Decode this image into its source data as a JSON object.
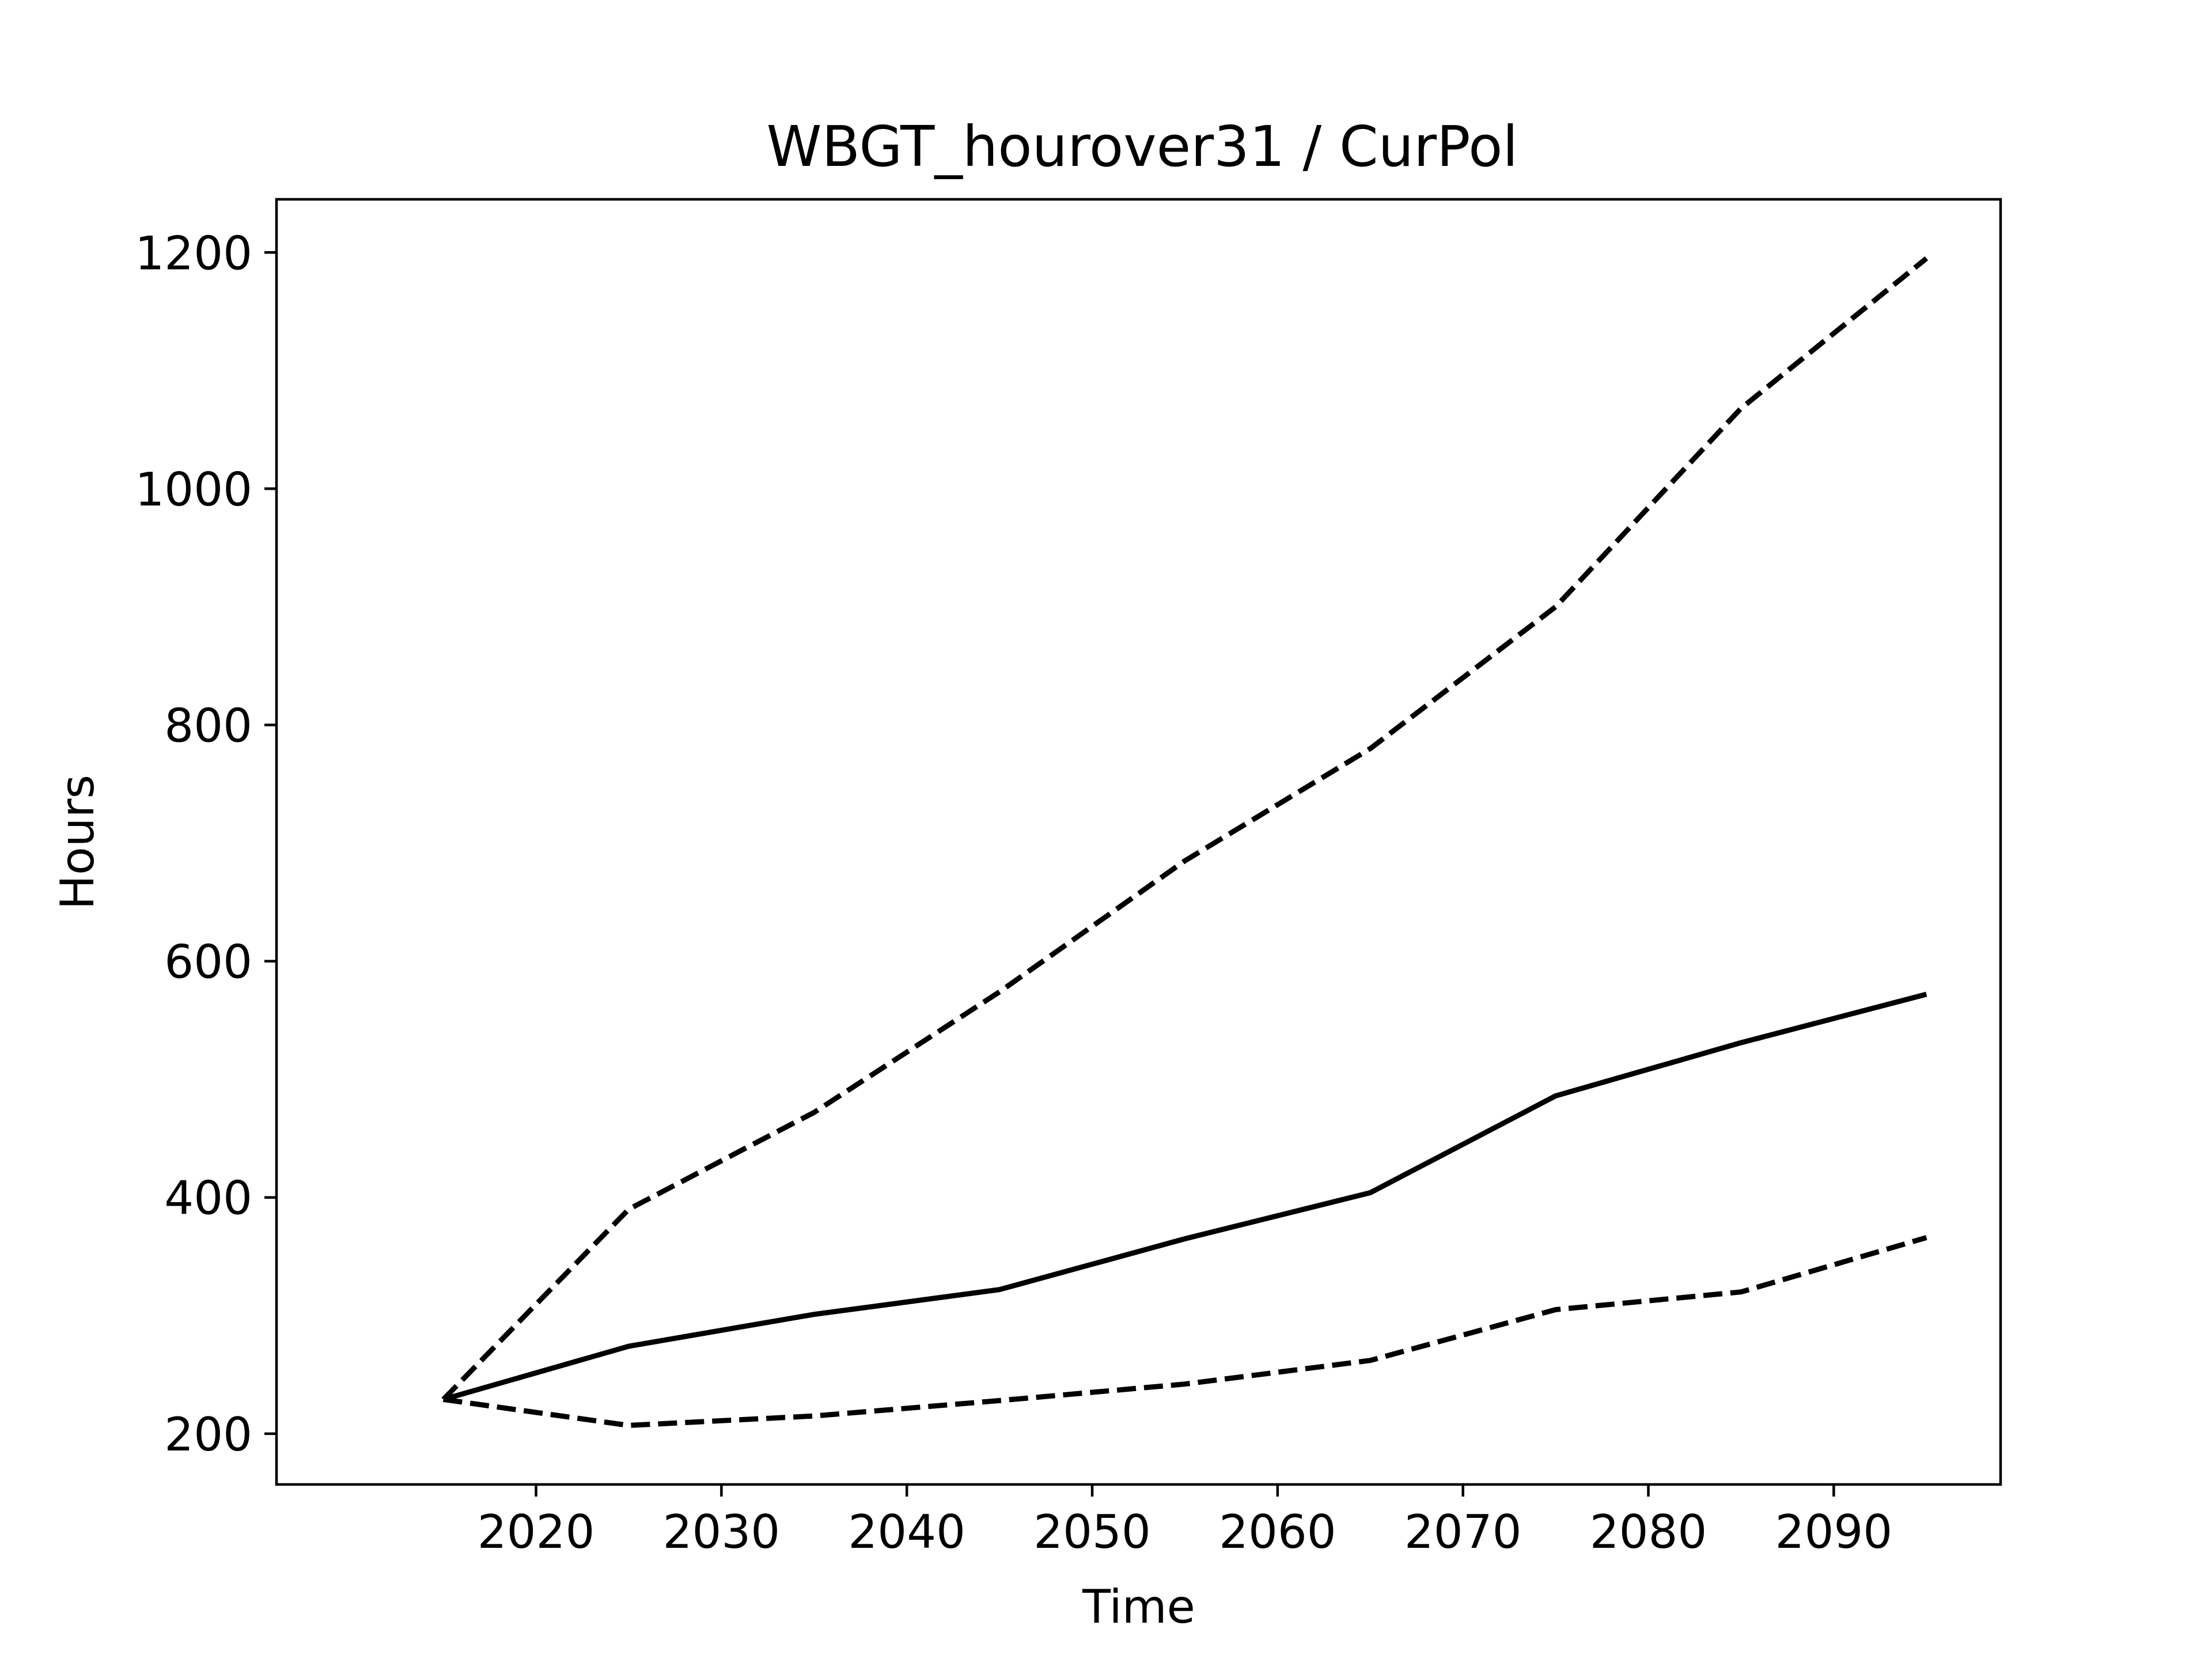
{
  "chart_data": {
    "type": "line",
    "title": "WBGT_hourover31 / CurPol",
    "xlabel": "Time",
    "ylabel": "Hours",
    "x": [
      2015,
      2025,
      2035,
      2045,
      2055,
      2065,
      2075,
      2085,
      2095
    ],
    "xlim": [
      2006,
      2099
    ],
    "ylim": [
      157,
      1245
    ],
    "xticks": [
      2020,
      2030,
      2040,
      2050,
      2060,
      2070,
      2080,
      2090
    ],
    "yticks": [
      200,
      400,
      600,
      800,
      1000,
      1200
    ],
    "grid": false,
    "legend": "none",
    "series": [
      {
        "style": "dashed",
        "color": "#000000",
        "values": [
          229,
          390,
          472,
          574,
          685,
          780,
          900,
          1068,
          1195
        ]
      },
      {
        "style": "solid",
        "color": "#000000",
        "values": [
          229,
          274,
          301,
          322,
          365,
          404,
          486,
          531,
          572
        ]
      },
      {
        "style": "dashed",
        "color": "#000000",
        "values": [
          229,
          207,
          215,
          228,
          242,
          262,
          305,
          320,
          366
        ]
      }
    ]
  }
}
